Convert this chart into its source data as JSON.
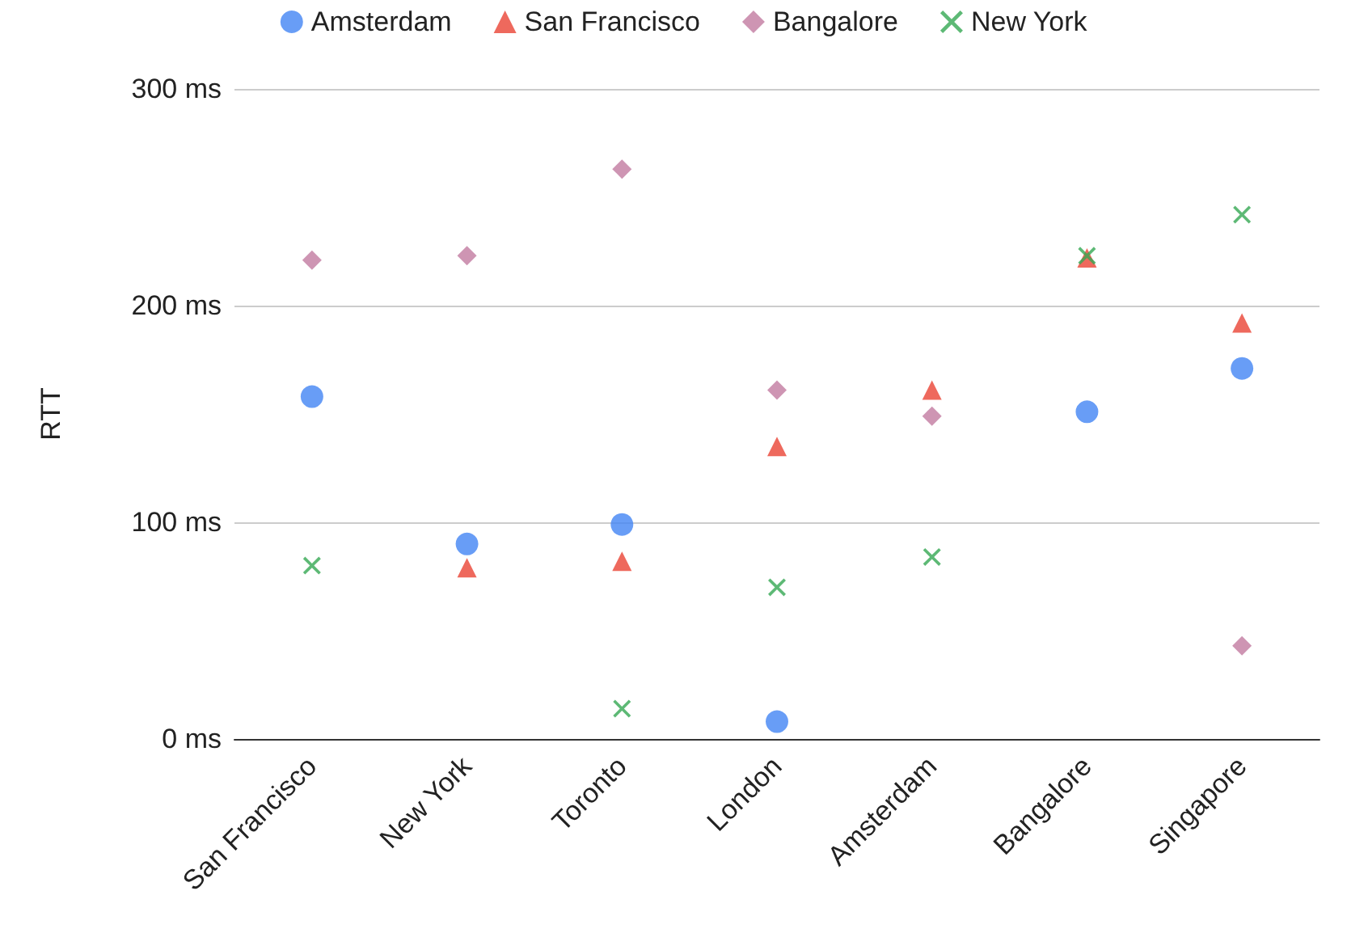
{
  "chart_data": {
    "type": "scatter",
    "ylabel": "RTT",
    "categories": [
      "San Francisco",
      "New York",
      "Toronto",
      "London",
      "Amsterdam",
      "Bangalore",
      "Singapore"
    ],
    "series": [
      {
        "name": "Amsterdam",
        "color": "#4285f4",
        "marker": "circle",
        "values": [
          158,
          90,
          99,
          8,
          null,
          151,
          171
        ]
      },
      {
        "name": "San Francisco",
        "color": "#ea4335",
        "marker": "triangle",
        "values": [
          null,
          79,
          82,
          135,
          161,
          222,
          192
        ]
      },
      {
        "name": "Bangalore",
        "color": "#c27ba0",
        "marker": "diamond",
        "values": [
          221,
          223,
          263,
          161,
          149,
          null,
          43
        ]
      },
      {
        "name": "New York",
        "color": "#34a853",
        "marker": "cross",
        "values": [
          80,
          null,
          14,
          70,
          84,
          223,
          242
        ]
      }
    ],
    "ylim": [
      0,
      300
    ],
    "yticks": [
      {
        "value": 0,
        "label": "0 ms"
      },
      {
        "value": 100,
        "label": "100 ms"
      },
      {
        "value": 200,
        "label": "200 ms"
      },
      {
        "value": 300,
        "label": "300 ms"
      }
    ],
    "grid": "y",
    "legend": "top"
  }
}
